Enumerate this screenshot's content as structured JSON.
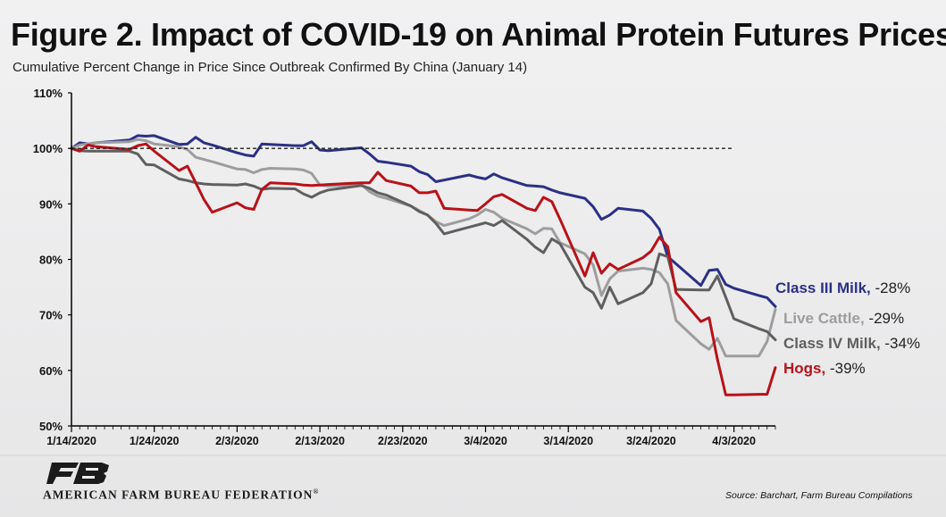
{
  "figure": {
    "title": "Figure 2. Impact of COVID-19 on Animal Protein Futures Prices",
    "subtitle": "Cumulative Percent Change in Price Since Outbreak Confirmed By China (January 14)"
  },
  "footer": {
    "org_name": "AMERICAN FARM BUREAU FEDERATION",
    "org_mark": "®",
    "logo_letters": "FB",
    "source": "Source: Barchart, Farm Bureau Compilations"
  },
  "colors": {
    "class3": "#2b3085",
    "cattle": "#9d9d9d",
    "class4": "#5f5f5f",
    "hogs": "#b81218",
    "axis": "#000000",
    "baseline": "#222222",
    "logo": "#1b1b1b"
  },
  "chart_data": {
    "type": "line",
    "xlabel": "",
    "ylabel": "",
    "ylim": [
      50,
      110
    ],
    "yticks": [
      "50%",
      "60%",
      "70%",
      "80%",
      "90%",
      "100%",
      "110%"
    ],
    "ytick_values": [
      50,
      60,
      70,
      80,
      90,
      100,
      110
    ],
    "xlim": [
      "2020-01-14",
      "2020-04-08"
    ],
    "xticks": [
      "1/14/2020",
      "1/24/2020",
      "2/3/2020",
      "2/13/2020",
      "2/23/2020",
      "3/4/2020",
      "3/14/2020",
      "3/24/2020",
      "4/3/2020"
    ],
    "xtick_dates": [
      "2020-01-14",
      "2020-01-24",
      "2020-02-03",
      "2020-02-13",
      "2020-02-23",
      "2020-03-04",
      "2020-03-14",
      "2020-03-24",
      "2020-04-03"
    ],
    "reference_line": {
      "y": 100,
      "style": "dashed",
      "to": "2020-04-03"
    },
    "grid": false,
    "legend": "end-of-line labels",
    "series": [
      {
        "name": "Class III Milk",
        "end_label": "-28%",
        "color_key": "class3",
        "x": [
          "2020-01-14",
          "2020-01-15",
          "2020-01-16",
          "2020-01-17",
          "2020-01-21",
          "2020-01-22",
          "2020-01-23",
          "2020-01-24",
          "2020-01-27",
          "2020-01-28",
          "2020-01-29",
          "2020-01-30",
          "2020-01-31",
          "2020-02-03",
          "2020-02-04",
          "2020-02-05",
          "2020-02-06",
          "2020-02-07",
          "2020-02-10",
          "2020-02-11",
          "2020-02-12",
          "2020-02-13",
          "2020-02-14",
          "2020-02-18",
          "2020-02-19",
          "2020-02-20",
          "2020-02-21",
          "2020-02-24",
          "2020-02-25",
          "2020-02-26",
          "2020-02-27",
          "2020-02-28",
          "2020-03-02",
          "2020-03-03",
          "2020-03-04",
          "2020-03-05",
          "2020-03-06",
          "2020-03-09",
          "2020-03-10",
          "2020-03-11",
          "2020-03-12",
          "2020-03-13",
          "2020-03-16",
          "2020-03-17",
          "2020-03-18",
          "2020-03-19",
          "2020-03-20",
          "2020-03-23",
          "2020-03-24",
          "2020-03-25",
          "2020-03-26",
          "2020-03-27",
          "2020-03-30",
          "2020-03-31",
          "2020-04-01",
          "2020-04-02",
          "2020-04-03",
          "2020-04-06",
          "2020-04-07",
          "2020-04-08"
        ],
        "y": [
          100.0,
          101.0,
          100.8,
          101.0,
          101.5,
          102.3,
          102.2,
          102.3,
          100.7,
          100.8,
          102.0,
          101.0,
          100.6,
          99.2,
          98.8,
          98.6,
          100.8,
          100.7,
          100.5,
          100.5,
          101.2,
          99.7,
          99.6,
          100.1,
          99.0,
          97.7,
          97.5,
          96.8,
          95.8,
          95.3,
          94.0,
          94.3,
          95.2,
          94.8,
          94.5,
          95.4,
          94.7,
          93.3,
          93.2,
          93.1,
          92.5,
          92.0,
          91.0,
          89.5,
          87.2,
          88.0,
          89.2,
          88.7,
          87.4,
          85.4,
          80.5,
          79.2,
          75.3,
          78.0,
          78.2,
          75.5,
          74.8,
          73.5,
          73.1,
          71.5
        ]
      },
      {
        "name": "Live Cattle",
        "end_label": "-29%",
        "color_key": "cattle",
        "x": [
          "2020-01-14",
          "2020-01-15",
          "2020-01-16",
          "2020-01-17",
          "2020-01-21",
          "2020-01-22",
          "2020-01-23",
          "2020-01-24",
          "2020-01-27",
          "2020-01-28",
          "2020-01-29",
          "2020-01-30",
          "2020-01-31",
          "2020-02-03",
          "2020-02-04",
          "2020-02-05",
          "2020-02-06",
          "2020-02-07",
          "2020-02-10",
          "2020-02-11",
          "2020-02-12",
          "2020-02-13",
          "2020-02-14",
          "2020-02-18",
          "2020-02-19",
          "2020-02-20",
          "2020-02-21",
          "2020-02-24",
          "2020-02-25",
          "2020-02-26",
          "2020-02-27",
          "2020-02-28",
          "2020-03-02",
          "2020-03-03",
          "2020-03-04",
          "2020-03-05",
          "2020-03-06",
          "2020-03-09",
          "2020-03-10",
          "2020-03-11",
          "2020-03-12",
          "2020-03-13",
          "2020-03-16",
          "2020-03-17",
          "2020-03-18",
          "2020-03-19",
          "2020-03-20",
          "2020-03-23",
          "2020-03-24",
          "2020-03-25",
          "2020-03-26",
          "2020-03-27",
          "2020-03-30",
          "2020-03-31",
          "2020-04-01",
          "2020-04-02",
          "2020-04-03",
          "2020-04-06",
          "2020-04-07",
          "2020-04-08"
        ],
        "y": [
          100.0,
          100.6,
          100.8,
          101.0,
          101.2,
          101.6,
          101.4,
          100.8,
          100.3,
          99.8,
          98.4,
          98.0,
          97.6,
          96.3,
          96.2,
          95.6,
          96.2,
          96.4,
          96.3,
          96.1,
          95.5,
          93.4,
          93.2,
          93.5,
          92.2,
          91.4,
          91.0,
          89.6,
          88.8,
          88.0,
          86.8,
          86.1,
          87.3,
          88.0,
          89.0,
          88.5,
          87.4,
          85.5,
          84.6,
          85.6,
          85.5,
          83.0,
          81.0,
          79.0,
          73.5,
          76.5,
          77.9,
          78.4,
          78.2,
          77.6,
          75.6,
          69.0,
          64.8,
          63.8,
          65.8,
          62.6,
          62.6,
          62.6,
          65.2,
          71.0
        ]
      },
      {
        "name": "Class IV Milk",
        "end_label": "-34%",
        "color_key": "class4",
        "x": [
          "2020-01-14",
          "2020-01-15",
          "2020-01-16",
          "2020-01-17",
          "2020-01-21",
          "2020-01-22",
          "2020-01-23",
          "2020-01-24",
          "2020-01-27",
          "2020-01-28",
          "2020-01-29",
          "2020-01-30",
          "2020-01-31",
          "2020-02-03",
          "2020-02-04",
          "2020-02-05",
          "2020-02-06",
          "2020-02-07",
          "2020-02-10",
          "2020-02-11",
          "2020-02-12",
          "2020-02-13",
          "2020-02-14",
          "2020-02-18",
          "2020-02-19",
          "2020-02-20",
          "2020-02-21",
          "2020-02-24",
          "2020-02-25",
          "2020-02-26",
          "2020-02-27",
          "2020-02-28",
          "2020-03-02",
          "2020-03-03",
          "2020-03-04",
          "2020-03-05",
          "2020-03-06",
          "2020-03-09",
          "2020-03-10",
          "2020-03-11",
          "2020-03-12",
          "2020-03-13",
          "2020-03-16",
          "2020-03-17",
          "2020-03-18",
          "2020-03-19",
          "2020-03-20",
          "2020-03-23",
          "2020-03-24",
          "2020-03-25",
          "2020-03-26",
          "2020-03-27",
          "2020-03-30",
          "2020-03-31",
          "2020-04-01",
          "2020-04-02",
          "2020-04-03",
          "2020-04-06",
          "2020-04-07",
          "2020-04-08"
        ],
        "y": [
          100.0,
          99.6,
          99.5,
          99.5,
          99.5,
          99.0,
          97.1,
          97.0,
          94.5,
          94.2,
          93.8,
          93.6,
          93.5,
          93.4,
          93.6,
          93.2,
          92.6,
          92.8,
          92.7,
          91.8,
          91.2,
          92.0,
          92.5,
          93.3,
          92.8,
          92.0,
          91.6,
          89.6,
          88.6,
          88.0,
          86.5,
          84.6,
          85.8,
          86.2,
          86.6,
          86.1,
          87.0,
          83.6,
          82.2,
          81.2,
          83.7,
          82.8,
          75.0,
          74.0,
          71.2,
          75.0,
          72.0,
          74.0,
          75.6,
          81.0,
          80.5,
          74.6,
          74.5,
          74.5,
          77.0,
          73.2,
          69.3,
          67.5,
          67.0,
          65.5
        ]
      },
      {
        "name": "Hogs",
        "end_label": "-39%",
        "color_key": "hogs",
        "x": [
          "2020-01-14",
          "2020-01-15",
          "2020-01-16",
          "2020-01-17",
          "2020-01-21",
          "2020-01-22",
          "2020-01-23",
          "2020-01-24",
          "2020-01-27",
          "2020-01-28",
          "2020-01-29",
          "2020-01-30",
          "2020-01-31",
          "2020-02-03",
          "2020-02-04",
          "2020-02-05",
          "2020-02-06",
          "2020-02-07",
          "2020-02-10",
          "2020-02-11",
          "2020-02-12",
          "2020-02-13",
          "2020-02-14",
          "2020-02-18",
          "2020-02-19",
          "2020-02-20",
          "2020-02-21",
          "2020-02-24",
          "2020-02-25",
          "2020-02-26",
          "2020-02-27",
          "2020-02-28",
          "2020-03-02",
          "2020-03-03",
          "2020-03-04",
          "2020-03-05",
          "2020-03-06",
          "2020-03-09",
          "2020-03-10",
          "2020-03-11",
          "2020-03-12",
          "2020-03-13",
          "2020-03-16",
          "2020-03-17",
          "2020-03-18",
          "2020-03-19",
          "2020-03-20",
          "2020-03-23",
          "2020-03-24",
          "2020-03-25",
          "2020-03-26",
          "2020-03-27",
          "2020-03-30",
          "2020-03-31",
          "2020-04-01",
          "2020-04-02",
          "2020-04-03",
          "2020-04-06",
          "2020-04-07",
          "2020-04-08"
        ],
        "y": [
          100.0,
          99.5,
          100.6,
          100.3,
          99.8,
          100.5,
          100.8,
          99.5,
          96.0,
          96.8,
          93.8,
          90.8,
          88.5,
          90.2,
          89.3,
          89.0,
          92.6,
          93.8,
          93.6,
          93.4,
          93.3,
          93.4,
          93.5,
          93.8,
          93.8,
          95.7,
          94.2,
          93.2,
          92.0,
          92.0,
          92.3,
          89.2,
          88.9,
          88.8,
          90.0,
          91.3,
          91.7,
          89.2,
          88.8,
          91.2,
          90.4,
          87.2,
          77.0,
          81.2,
          77.5,
          79.2,
          78.2,
          80.3,
          81.5,
          84.0,
          82.3,
          74.0,
          68.8,
          69.5,
          62.0,
          55.6,
          55.6,
          55.7,
          55.7,
          60.5
        ]
      }
    ]
  }
}
